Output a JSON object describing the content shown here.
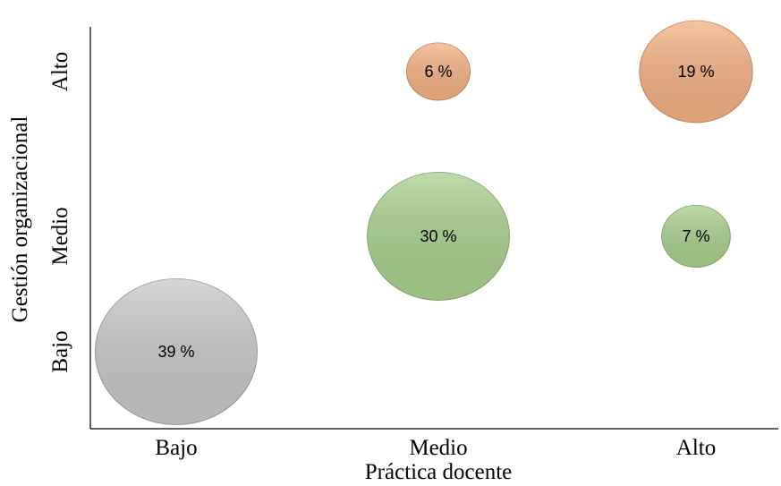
{
  "chart_data": {
    "type": "bubble",
    "x_label": "Práctica docente",
    "y_label": "Gestión organizacional",
    "x_categories": [
      "Bajo",
      "Medio",
      "Alto"
    ],
    "y_categories": [
      "Bajo",
      "Medio",
      "Alto"
    ],
    "x": [
      "Bajo",
      "Medio",
      "Medio",
      "Alto",
      "Alto"
    ],
    "y": [
      "Bajo",
      "Medio",
      "Alto",
      "Medio",
      "Alto"
    ],
    "values": [
      39,
      30,
      6,
      7,
      19
    ],
    "value_labels": [
      "39 %",
      "30 %",
      "6 %",
      "7 %",
      "19 %"
    ],
    "colors": [
      "#c8c8c8",
      "#a9d08e",
      "#f4b183",
      "#a9d08e",
      "#f4b183"
    ]
  }
}
